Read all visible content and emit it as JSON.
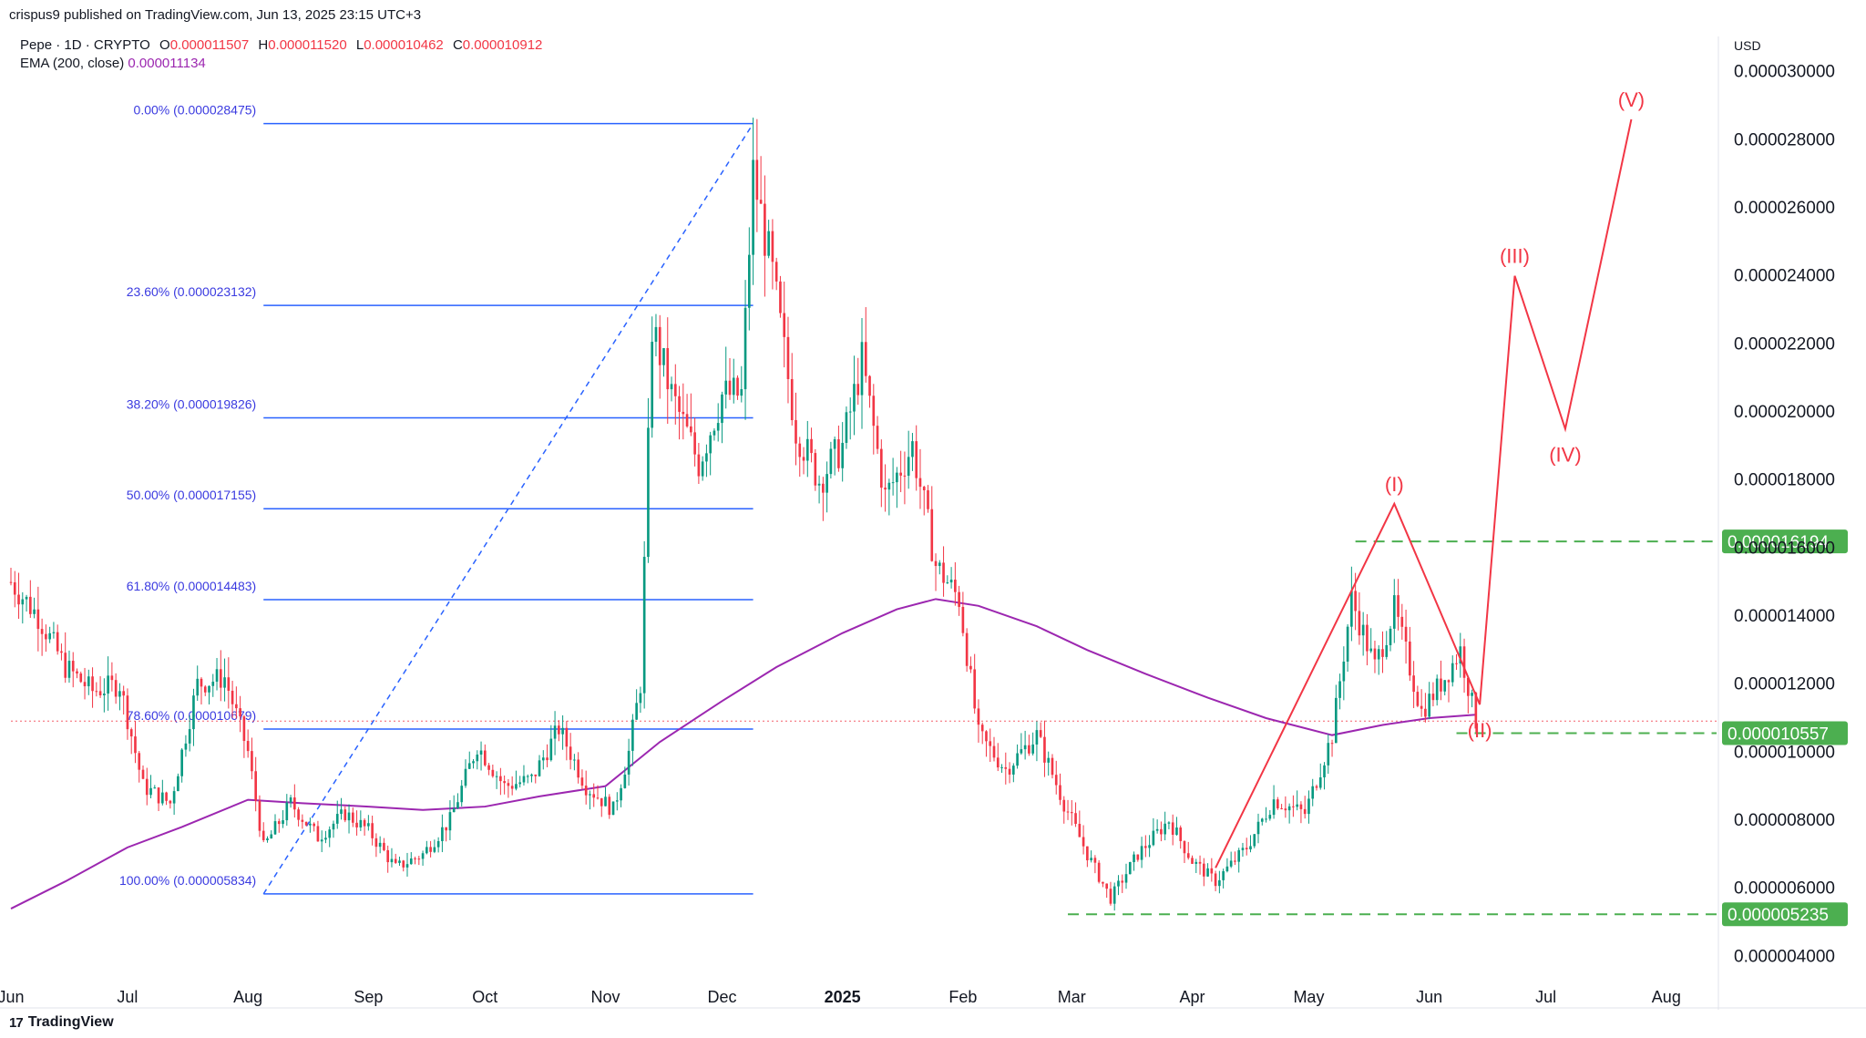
{
  "header": {
    "attribution": "crispus9 published on TradingView.com, Jun 13, 2025 23:15 UTC+3"
  },
  "legend": {
    "symbol": "Pepe · 1D · CRYPTO",
    "o_label": "O",
    "o_value": "0.000011507",
    "h_label": "H",
    "h_value": "0.000011520",
    "l_label": "L",
    "l_value": "0.000010462",
    "c_label": "C",
    "c_value": "0.000010912",
    "ema_label": "EMA (200, close)",
    "ema_value": "0.000011134"
  },
  "footer": {
    "brand": "TradingView",
    "logo_mark": "17"
  },
  "colors": {
    "up": "#089981",
    "down": "#f23645",
    "ema": "#9c27b0",
    "fib": "#2962ff",
    "fib_text": "#3a3ae0",
    "elliott": "#f23645",
    "level": "#4caf50",
    "grid": "#e6e8ec"
  },
  "chart_data": {
    "type": "candlestick",
    "currency": "USD",
    "y_axis": {
      "range": [
        3.5e-06,
        3.05e-05
      ],
      "ticks": [
        "0.000004000",
        "0.000006000",
        "0.000008000",
        "0.000010000",
        "0.000012000",
        "0.000014000",
        "0.000016000",
        "0.000018000",
        "0.000020000",
        "0.000022000",
        "0.000024000",
        "0.000026000",
        "0.000028000",
        "0.000030000"
      ]
    },
    "x_axis": {
      "range": [
        "2024-06-01",
        "2025-08-13"
      ],
      "ticks": [
        {
          "label": "Jun",
          "date": "2024-06-01"
        },
        {
          "label": "Jul",
          "date": "2024-07-01"
        },
        {
          "label": "Aug",
          "date": "2024-08-01"
        },
        {
          "label": "Sep",
          "date": "2024-09-01"
        },
        {
          "label": "Oct",
          "date": "2024-10-01"
        },
        {
          "label": "Nov",
          "date": "2024-11-01"
        },
        {
          "label": "Dec",
          "date": "2024-12-01"
        },
        {
          "label": "2025",
          "date": "2025-01-01",
          "bold": true
        },
        {
          "label": "Feb",
          "date": "2025-02-01"
        },
        {
          "label": "Mar",
          "date": "2025-03-01"
        },
        {
          "label": "Apr",
          "date": "2025-04-01"
        },
        {
          "label": "May",
          "date": "2025-05-01"
        },
        {
          "label": "Jun",
          "date": "2025-06-01"
        },
        {
          "label": "Jul",
          "date": "2025-07-01"
        },
        {
          "label": "Aug",
          "date": "2025-08-01"
        }
      ]
    },
    "price_path": [
      [
        "2024-06-01",
        1.5e-05
      ],
      [
        "2024-06-08",
        1.4e-05
      ],
      [
        "2024-06-15",
        1.25e-05
      ],
      [
        "2024-06-22",
        1.18e-05
      ],
      [
        "2024-06-29",
        1.2e-05
      ],
      [
        "2024-07-05",
        9e-06
      ],
      [
        "2024-07-12",
        8.5e-06
      ],
      [
        "2024-07-19",
        1.2e-05
      ],
      [
        "2024-07-26",
        1.22e-05
      ],
      [
        "2024-08-01",
        1e-05
      ],
      [
        "2024-08-05",
        7.2e-06
      ],
      [
        "2024-08-12",
        8.5e-06
      ],
      [
        "2024-08-19",
        7.5e-06
      ],
      [
        "2024-08-26",
        8.2e-06
      ],
      [
        "2024-09-01",
        7.7e-06
      ],
      [
        "2024-09-08",
        6.6e-06
      ],
      [
        "2024-09-15",
        7e-06
      ],
      [
        "2024-09-22",
        8e-06
      ],
      [
        "2024-09-29",
        1.02e-05
      ],
      [
        "2024-10-06",
        9e-06
      ],
      [
        "2024-10-13",
        9.2e-06
      ],
      [
        "2024-10-20",
        1.07e-05
      ],
      [
        "2024-10-27",
        9e-06
      ],
      [
        "2024-11-03",
        8.3e-06
      ],
      [
        "2024-11-07",
        1e-05
      ],
      [
        "2024-11-10",
        1.2e-05
      ],
      [
        "2024-11-13",
        2.25e-05
      ],
      [
        "2024-11-18",
        2.05e-05
      ],
      [
        "2024-11-25",
        1.85e-05
      ],
      [
        "2024-12-01",
        2.05e-05
      ],
      [
        "2024-12-06",
        2.05e-05
      ],
      [
        "2024-12-09",
        2.7e-05
      ],
      [
        "2024-12-14",
        2.4e-05
      ],
      [
        "2024-12-20",
        1.95e-05
      ],
      [
        "2024-12-26",
        1.8e-05
      ],
      [
        "2025-01-01",
        1.9e-05
      ],
      [
        "2025-01-06",
        2.15e-05
      ],
      [
        "2025-01-12",
        1.75e-05
      ],
      [
        "2025-01-19",
        1.9e-05
      ],
      [
        "2025-01-25",
        1.55e-05
      ],
      [
        "2025-01-31",
        1.45e-05
      ],
      [
        "2025-02-05",
        1.05e-05
      ],
      [
        "2025-02-12",
        9.5e-06
      ],
      [
        "2025-02-20",
        1.05e-05
      ],
      [
        "2025-02-27",
        8.5e-06
      ],
      [
        "2025-03-05",
        7e-06
      ],
      [
        "2025-03-11",
        5.7e-06
      ],
      [
        "2025-03-18",
        7e-06
      ],
      [
        "2025-03-26",
        8e-06
      ],
      [
        "2025-04-01",
        6.8e-06
      ],
      [
        "2025-04-07",
        6.2e-06
      ],
      [
        "2025-04-15",
        7.2e-06
      ],
      [
        "2025-04-22",
        8.6e-06
      ],
      [
        "2025-04-30",
        8.2e-06
      ],
      [
        "2025-05-07",
        1.05e-05
      ],
      [
        "2025-05-12",
        1.45e-05
      ],
      [
        "2025-05-18",
        1.25e-05
      ],
      [
        "2025-05-23",
        1.42e-05
      ],
      [
        "2025-05-30",
        1.12e-05
      ],
      [
        "2025-06-05",
        1.22e-05
      ],
      [
        "2025-06-09",
        1.3e-05
      ],
      [
        "2025-06-13",
        1.09e-05
      ]
    ],
    "ema_200": [
      [
        "2024-06-01",
        5.4e-06
      ],
      [
        "2024-06-15",
        6.2e-06
      ],
      [
        "2024-07-01",
        7.2e-06
      ],
      [
        "2024-07-15",
        7.8e-06
      ],
      [
        "2024-08-01",
        8.6e-06
      ],
      [
        "2024-08-15",
        8.5e-06
      ],
      [
        "2024-09-01",
        8.4e-06
      ],
      [
        "2024-09-15",
        8.3e-06
      ],
      [
        "2024-10-01",
        8.4e-06
      ],
      [
        "2024-10-15",
        8.7e-06
      ],
      [
        "2024-11-01",
        9e-06
      ],
      [
        "2024-11-15",
        1.03e-05
      ],
      [
        "2024-12-01",
        1.15e-05
      ],
      [
        "2024-12-15",
        1.25e-05
      ],
      [
        "2025-01-01",
        1.35e-05
      ],
      [
        "2025-01-15",
        1.42e-05
      ],
      [
        "2025-01-25",
        1.45e-05
      ],
      [
        "2025-02-05",
        1.43e-05
      ],
      [
        "2025-02-20",
        1.37e-05
      ],
      [
        "2025-03-05",
        1.3e-05
      ],
      [
        "2025-03-20",
        1.23e-05
      ],
      [
        "2025-04-05",
        1.16e-05
      ],
      [
        "2025-04-20",
        1.1e-05
      ],
      [
        "2025-05-07",
        1.05e-05
      ],
      [
        "2025-05-20",
        1.08e-05
      ],
      [
        "2025-06-01",
        1.1e-05
      ],
      [
        "2025-06-13",
        1.11e-05
      ]
    ],
    "fib_retracement": {
      "start_date": "2024-08-05",
      "end_date": "2024-12-09",
      "low": 5.834e-06,
      "high": 2.8475e-05,
      "levels": [
        {
          "label": "0.00% (0.000028475)",
          "value": 2.8475e-05
        },
        {
          "label": "23.60% (0.000023132)",
          "value": 2.3132e-05
        },
        {
          "label": "38.20% (0.000019826)",
          "value": 1.9826e-05
        },
        {
          "label": "50.00% (0.000017155)",
          "value": 1.7155e-05
        },
        {
          "label": "61.80% (0.000014483)",
          "value": 1.4483e-05
        },
        {
          "label": "78.60% (0.000010679)",
          "value": 1.0679e-05
        },
        {
          "label": "100.00% (0.000005834)",
          "value": 5.834e-06
        }
      ]
    },
    "horizontal_levels": [
      {
        "label": "0.000016194",
        "value": 1.6194e-05,
        "start_date": "2025-05-13"
      },
      {
        "label": "0.000010557",
        "value": 1.0557e-05,
        "start_date": "2025-06-08"
      },
      {
        "label": "0.000005235",
        "value": 5.235e-06,
        "start_date": "2025-02-28"
      }
    ],
    "current_price": 1.0912e-05,
    "elliott_wave": {
      "points": [
        {
          "date": "2025-04-07",
          "value": 6.6e-06,
          "label": ""
        },
        {
          "date": "2025-05-23",
          "value": 1.73e-05,
          "label": "(I)"
        },
        {
          "date": "2025-06-14",
          "value": 1.14e-05,
          "label": "(II)"
        },
        {
          "date": "2025-06-23",
          "value": 2.4e-05,
          "label": "(III)"
        },
        {
          "date": "2025-07-06",
          "value": 1.95e-05,
          "label": "(IV)"
        },
        {
          "date": "2025-07-23",
          "value": 2.86e-05,
          "label": "(V)"
        }
      ]
    }
  }
}
